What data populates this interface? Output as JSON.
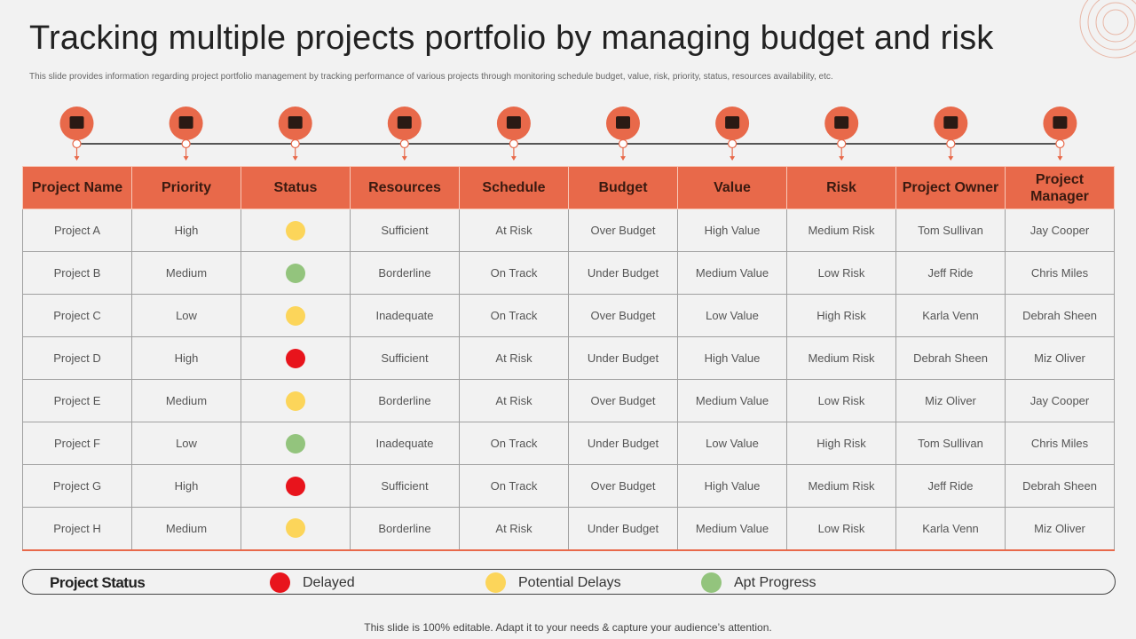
{
  "title": "Tracking multiple projects portfolio by managing budget and risk",
  "subtitle": "This slide provides information regarding project portfolio management  by tracking performance of various projects through monitoring schedule budget, value, risk, priority, status, resources availability, etc.",
  "colors": {
    "accent": "#e8694a",
    "red": "#e8141c",
    "yellow": "#fcd55a",
    "green": "#93c47d"
  },
  "icons": [
    "idea-gear-icon",
    "person-flowchart-icon",
    "monitor-presentation-icon",
    "gear-network-icon",
    "calendar-check-icon",
    "clipboard-chart-icon",
    "atom-person-icon",
    "warning-icon",
    "person-cycle-icon",
    "manager-clock-icon"
  ],
  "columns": [
    "Project Name",
    "Priority",
    "Status",
    "Resources",
    "Schedule",
    "Budget",
    "Value",
    "Risk",
    "Project Owner",
    "Project Manager"
  ],
  "rows": [
    [
      "Project A",
      "High",
      "yellow",
      "Sufficient",
      "At Risk",
      "Over Budget",
      "High Value",
      "Medium Risk",
      "Tom Sullivan",
      "Jay Cooper"
    ],
    [
      "Project B",
      "Medium",
      "green",
      "Borderline",
      "On Track",
      "Under Budget",
      "Medium Value",
      "Low Risk",
      "Jeff Ride",
      "Chris Miles"
    ],
    [
      "Project C",
      "Low",
      "yellow",
      "Inadequate",
      "On Track",
      "Over Budget",
      "Low Value",
      "High Risk",
      "Karla Venn",
      "Debrah Sheen"
    ],
    [
      "Project D",
      "High",
      "red",
      "Sufficient",
      "At Risk",
      "Under Budget",
      "High Value",
      "Medium Risk",
      "Debrah Sheen",
      "Miz Oliver"
    ],
    [
      "Project E",
      "Medium",
      "yellow",
      "Borderline",
      "At Risk",
      "Over Budget",
      "Medium Value",
      "Low Risk",
      "Miz Oliver",
      "Jay Cooper"
    ],
    [
      "Project F",
      "Low",
      "green",
      "Inadequate",
      "On Track",
      "Under Budget",
      "Low Value",
      "High Risk",
      "Tom Sullivan",
      "Chris Miles"
    ],
    [
      "Project G",
      "High",
      "red",
      "Sufficient",
      "On Track",
      "Over Budget",
      "High Value",
      "Medium Risk",
      "Jeff Ride",
      "Debrah Sheen"
    ],
    [
      "Project H",
      "Medium",
      "yellow",
      "Borderline",
      "At Risk",
      "Under Budget",
      "Medium Value",
      "Low Risk",
      "Karla Venn",
      "Miz Oliver"
    ]
  ],
  "legend": {
    "title": "Project Status",
    "items": [
      {
        "label": "Delayed",
        "color": "red"
      },
      {
        "label": "Potential Delays",
        "color": "yellow"
      },
      {
        "label": "Apt Progress",
        "color": "green"
      }
    ]
  },
  "footer": "This slide is 100% editable. Adapt it to your needs & capture your audience’s attention."
}
